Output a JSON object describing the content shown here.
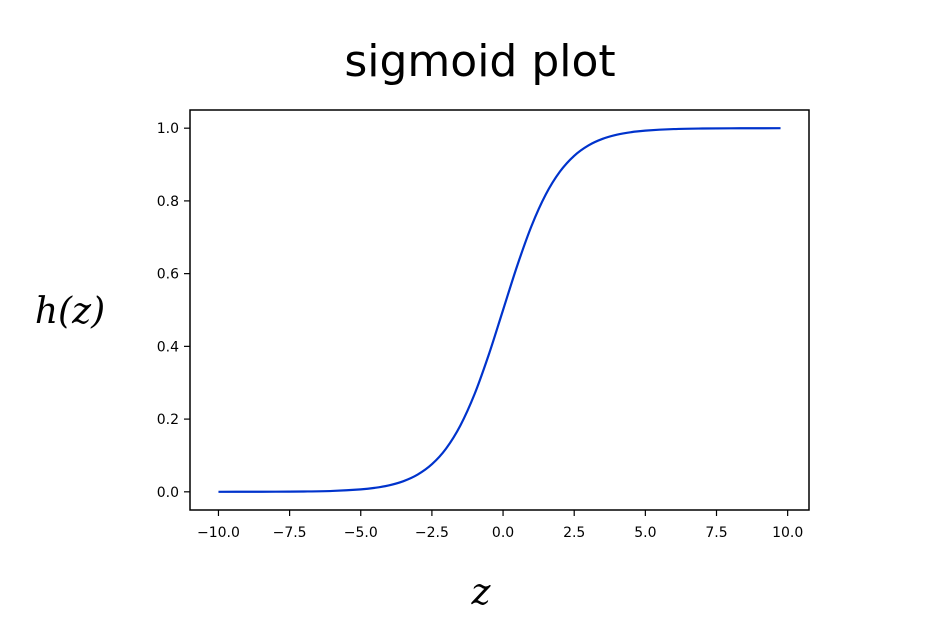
{
  "chart_data": {
    "type": "line",
    "title": "sigmoid plot",
    "xlabel": "z",
    "ylabel": "h(z)",
    "xlim": [
      -11.0,
      10.75
    ],
    "ylim": [
      -0.05,
      1.05
    ],
    "x_ticks": [
      -10.0,
      -7.5,
      -5.0,
      -2.5,
      0.0,
      2.5,
      5.0,
      7.5,
      10.0
    ],
    "x_tick_labels": [
      "−10.0",
      "−7.5",
      "−5.0",
      "−2.5",
      "0.0",
      "2.5",
      "5.0",
      "7.5",
      "10.0"
    ],
    "y_ticks": [
      0.0,
      0.2,
      0.4,
      0.6,
      0.8,
      1.0
    ],
    "y_tick_labels": [
      "0.0",
      "0.2",
      "0.4",
      "0.6",
      "0.8",
      "1.0"
    ],
    "grid": false,
    "series": [
      {
        "color": "#0033cc",
        "x": [
          -10.0,
          -9.0,
          -8.0,
          -7.0,
          -6.0,
          -5.0,
          -4.5,
          -4.0,
          -3.5,
          -3.0,
          -2.5,
          -2.0,
          -1.5,
          -1.0,
          -0.5,
          0.0,
          0.5,
          1.0,
          1.5,
          2.0,
          2.5,
          3.0,
          3.5,
          4.0,
          4.5,
          5.0,
          6.0,
          7.0,
          8.0,
          9.0,
          9.75
        ],
        "y": [
          5e-05,
          0.00012,
          0.00034,
          0.00091,
          0.00247,
          0.00669,
          0.01099,
          0.01799,
          0.02931,
          0.04743,
          0.07586,
          0.1192,
          0.18243,
          0.26894,
          0.37754,
          0.5,
          0.62246,
          0.73106,
          0.81757,
          0.8808,
          0.92414,
          0.95257,
          0.97069,
          0.98201,
          0.98901,
          0.99331,
          0.99753,
          0.99909,
          0.99966,
          0.99988,
          0.99994
        ]
      }
    ]
  }
}
